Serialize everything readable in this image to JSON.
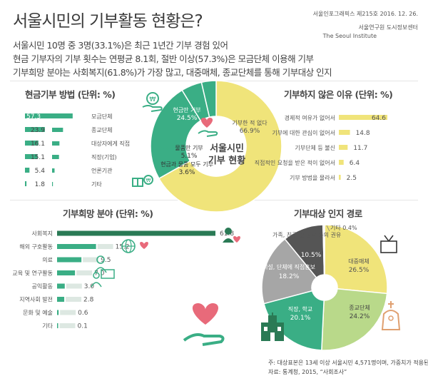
{
  "header": {
    "title": "서울시민의 기부활동 현황은?",
    "issue": "서울인포그래픽스 제215호 2016. 12. 26.",
    "institute_ko": "서울연구원 도시정보센터",
    "institute_en": "The Seoul Institute"
  },
  "intro": [
    "서울시민 10명 중 3명(33.1%)은 최근 1년간 기부 경험 있어",
    "현금 기부자의 기부 횟수는 연평균 8.1회, 절반 이상(57.3%)은 모금단체 이용해 기부",
    "기부희망 분야는 사회복지(61.8%)가 가장 많고, 대중매체, 종교단체를 통해 기부대상 인지"
  ],
  "center": {
    "line1": "서울시민",
    "line2": "기부 현황"
  },
  "sections": {
    "cash": "현금기부 방법 (단위: %)",
    "reasons": "기부하지 않은 이유 (단위: %)",
    "wish": "기부희망 분야 (단위: %)",
    "awareness": "기부대상 인지 경로"
  },
  "footnote": {
    "line1": "주: 대상표본은 13세 이상 서울시민 4,571명이며, 가중치가 적용된 결과임",
    "line2": "자료: 통계청, 2015, “사회조사”"
  },
  "colors": {
    "green": "#3aae85",
    "dark_green": "#2a7a55",
    "yellow": "#f0e47a",
    "light_green": "#b9d98a",
    "gray": "#9e9e9e",
    "dark_gray": "#555555",
    "pink": "#e86a7a"
  },
  "chart_data": [
    {
      "id": "cash_methods",
      "type": "bar",
      "title": "현금기부 방법 (단위: %)",
      "categories": [
        "모금단체",
        "종교단체",
        "대상자에게 직접",
        "직장(기업)",
        "언론기관",
        "기타"
      ],
      "values": [
        57.3,
        23.9,
        16.1,
        15.1,
        5.4,
        1.8
      ],
      "labels": [
        "57.3",
        "23.9",
        "16.1",
        "15.1",
        "5.4",
        "1.8"
      ]
    },
    {
      "id": "donation_status",
      "type": "pie",
      "categories": [
        "기부한 적 없다",
        "현금만 기부",
        "물품만 기부",
        "현금과 물품 모두 기부"
      ],
      "values": [
        66.9,
        24.5,
        5.1,
        3.6
      ],
      "labels": [
        "66.9%",
        "24.5%",
        "5.1%",
        "3.6%"
      ]
    },
    {
      "id": "no_donation_reasons",
      "type": "bar",
      "title": "기부하지 않은 이유 (단위: %)",
      "categories": [
        "경제적 여유가 없어서",
        "기부에 대한 관심이 없어서",
        "기부단체 등 불신",
        "직접적인 요청을 받은 적이 없어서",
        "기부 방법을 몰라서"
      ],
      "values": [
        64.6,
        14.8,
        11.7,
        6.4,
        2.5
      ],
      "labels": [
        "64.6",
        "14.8",
        "11.7",
        "6.4",
        "2.5"
      ]
    },
    {
      "id": "wish_fields",
      "type": "bar",
      "title": "기부희망 분야 (단위: %)",
      "categories": [
        "사회복지",
        "해외 구호활동",
        "의료",
        "교육 및 연구활동",
        "공익활동",
        "지역사회 발전",
        "문화 및 예술",
        "기타"
      ],
      "values": [
        61.8,
        15.2,
        9.5,
        7.0,
        3.0,
        2.8,
        0.6,
        0.1
      ],
      "labels": [
        "61.8",
        "15.2",
        "9.5",
        "7.0",
        "3.0",
        "2.8",
        "0.6",
        "0.1"
      ]
    },
    {
      "id": "awareness_paths",
      "type": "pie",
      "title": "기부대상 인지 경로",
      "categories": [
        "대중매체",
        "종교단체",
        "직장, 학교",
        "시설, 단체에 직접홍보",
        "가족, 친구 및 동료 등의 권유",
        "기타"
      ],
      "values": [
        26.5,
        24.2,
        20.1,
        18.2,
        10.5,
        0.4
      ],
      "labels": [
        "26.5%",
        "24.2%",
        "20.1%",
        "18.2%",
        "10.5%",
        "0.4%"
      ]
    }
  ]
}
